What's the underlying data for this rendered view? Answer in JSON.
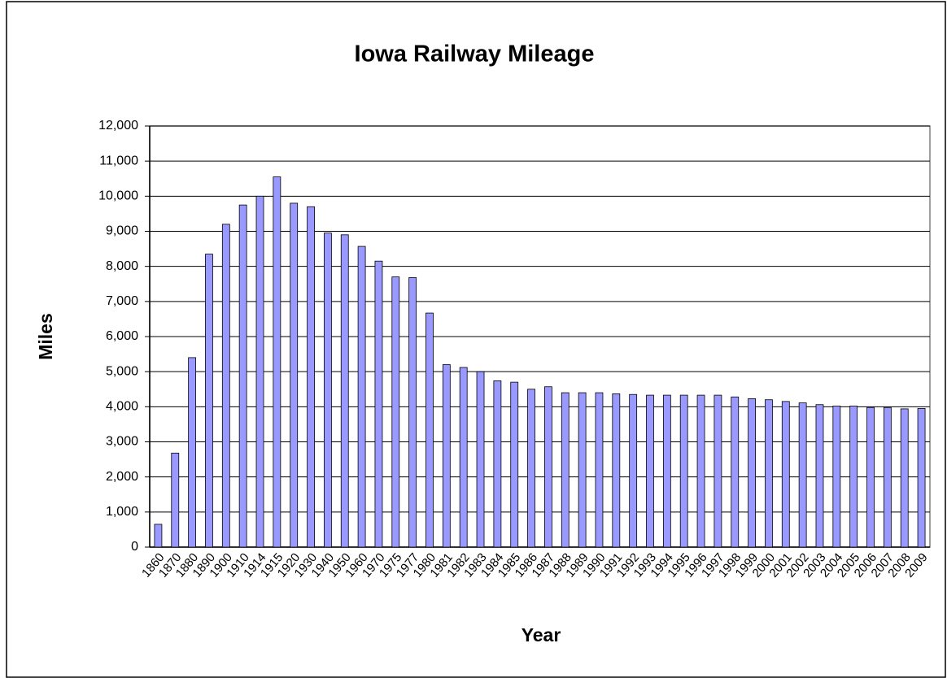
{
  "chart_data": {
    "type": "bar",
    "title": "Iowa Railway Mileage",
    "x_label": "Year",
    "y_label": "Miles",
    "categories": [
      "1860",
      "1870",
      "1880",
      "1890",
      "1900",
      "1910",
      "1914",
      "1915",
      "1920",
      "1930",
      "1940",
      "1950",
      "1960",
      "1970",
      "1975",
      "1977",
      "1980",
      "1981",
      "1982",
      "1983",
      "1984",
      "1985",
      "1986",
      "1987",
      "1988",
      "1989",
      "1990",
      "1991",
      "1992",
      "1993",
      "1994",
      "1995",
      "1996",
      "1997",
      "1998",
      "1999",
      "2000",
      "2001",
      "2002",
      "2003",
      "2004",
      "2005",
      "2006",
      "2007",
      "2008",
      "2009"
    ],
    "values": [
      650,
      2680,
      5400,
      8350,
      9200,
      9750,
      10000,
      10550,
      9800,
      9700,
      8950,
      8900,
      8570,
      8150,
      7700,
      7680,
      6670,
      5200,
      5120,
      5000,
      4740,
      4700,
      4500,
      4570,
      4400,
      4400,
      4400,
      4370,
      4350,
      4330,
      4330,
      4330,
      4330,
      4330,
      4280,
      4230,
      4200,
      4150,
      4110,
      4060,
      4020,
      4020,
      3980,
      3980,
      3940,
      3950
    ],
    "color": "#9999ff",
    "ylim": [
      0,
      12000
    ],
    "yticks": [
      0,
      {
        "value": 1000,
        "label": "1,000"
      },
      {
        "value": 2000,
        "label": "2,000"
      },
      {
        "value": 3000,
        "label": "3,000"
      },
      {
        "value": 4000,
        "label": "4,000"
      },
      {
        "value": 5000,
        "label": "5,000"
      },
      {
        "value": 6000,
        "label": "6,000"
      },
      {
        "value": 7000,
        "label": "7,000"
      },
      {
        "value": 8000,
        "label": "8,000"
      },
      {
        "value": 9000,
        "label": "9,000"
      },
      {
        "value": 10000,
        "label": "10,000"
      },
      {
        "value": 11000,
        "label": "11,000"
      },
      {
        "value": 12000,
        "label": "12,000"
      }
    ],
    "grid": true
  }
}
